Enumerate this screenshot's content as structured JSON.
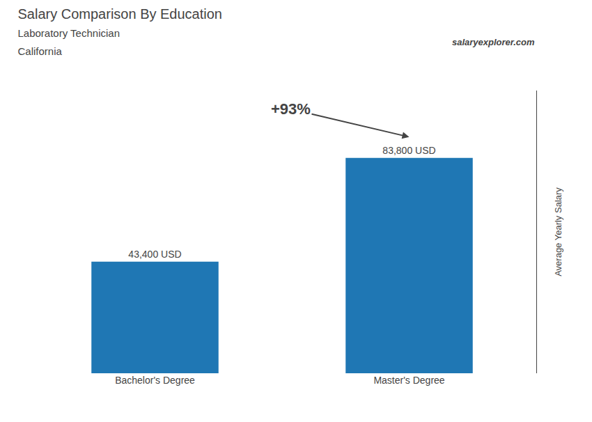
{
  "chart_data": {
    "type": "bar",
    "title": "Salary Comparison By Education",
    "subtitle": [
      "Laboratory Technician",
      "California"
    ],
    "ylabel": "Average Yearly Salary",
    "annotations": [
      "salaryexplorer.com",
      "+93%"
    ],
    "categories": [
      "Bachelor's Degree",
      "Master's Degree"
    ],
    "values": [
      43400,
      83800
    ],
    "value_labels": [
      "43,400 USD",
      "83,800 USD"
    ],
    "data_labels": true,
    "ylim": [
      0,
      110000
    ],
    "yticks": [],
    "tick_labels": "x",
    "grid": false
  }
}
